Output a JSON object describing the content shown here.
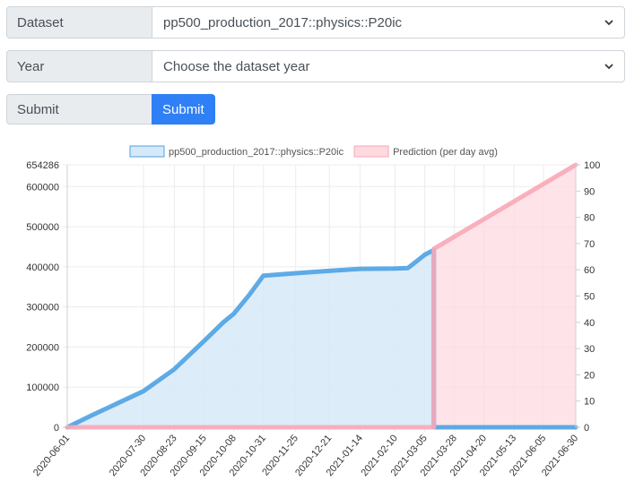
{
  "form": {
    "dataset": {
      "label": "Dataset",
      "value": "pp500_production_2017::physics::P20ic"
    },
    "year": {
      "label": "Year",
      "value": "Choose the dataset year"
    },
    "submit": {
      "label": "Submit",
      "button_label": "Submit"
    }
  },
  "chart_data": {
    "type": "line",
    "legend_position": "top",
    "grid": true,
    "x": [
      "2020-06-01",
      "2020-07-30",
      "2020-08-23",
      "2020-09-15",
      "2020-10-08",
      "2020-10-31",
      "2020-11-25",
      "2020-12-21",
      "2021-01-14",
      "2021-02-10",
      "2021-03-05",
      "2021-03-28",
      "2021-04-20",
      "2021-05-13",
      "2021-06-05",
      "2021-06-30"
    ],
    "y_left": {
      "ticks": [
        0,
        100000,
        200000,
        300000,
        400000,
        500000,
        600000,
        654286
      ],
      "range": [
        0,
        654286
      ]
    },
    "y_right": {
      "ticks": [
        0,
        10,
        20,
        30,
        40,
        50,
        60,
        70,
        80,
        90,
        100
      ],
      "range": [
        0,
        100
      ]
    },
    "series": [
      {
        "name": "pp500_production_2017::physics::P20ic",
        "axis": "left",
        "color": "#4ea2e3",
        "fill": "#d6e9f8",
        "points": [
          [
            "2020-06-01",
            0
          ],
          [
            "2020-06-20",
            30000
          ],
          [
            "2020-07-30",
            90000
          ],
          [
            "2020-08-23",
            145000
          ],
          [
            "2020-09-15",
            215000
          ],
          [
            "2020-09-30",
            262000
          ],
          [
            "2020-10-08",
            283000
          ],
          [
            "2020-10-20",
            330000
          ],
          [
            "2020-10-31",
            378000
          ],
          [
            "2020-11-25",
            384000
          ],
          [
            "2020-12-21",
            390000
          ],
          [
            "2021-01-14",
            395000
          ],
          [
            "2021-02-10",
            396000
          ],
          [
            "2021-02-20",
            397000
          ],
          [
            "2021-03-05",
            430000
          ],
          [
            "2021-03-12",
            442000
          ],
          [
            "2021-03-12",
            0
          ],
          [
            "2021-06-30",
            0
          ]
        ]
      },
      {
        "name": "Prediction (per day avg)",
        "axis": "right",
        "color": "#f9a7b7",
        "fill": "#fdd9e0",
        "points": [
          [
            "2020-06-01",
            0
          ],
          [
            "2021-03-12",
            0
          ],
          [
            "2021-03-12",
            68
          ],
          [
            "2021-06-30",
            100
          ]
        ]
      }
    ]
  },
  "icons": {
    "select_arrow": "chevron-down-icon"
  }
}
